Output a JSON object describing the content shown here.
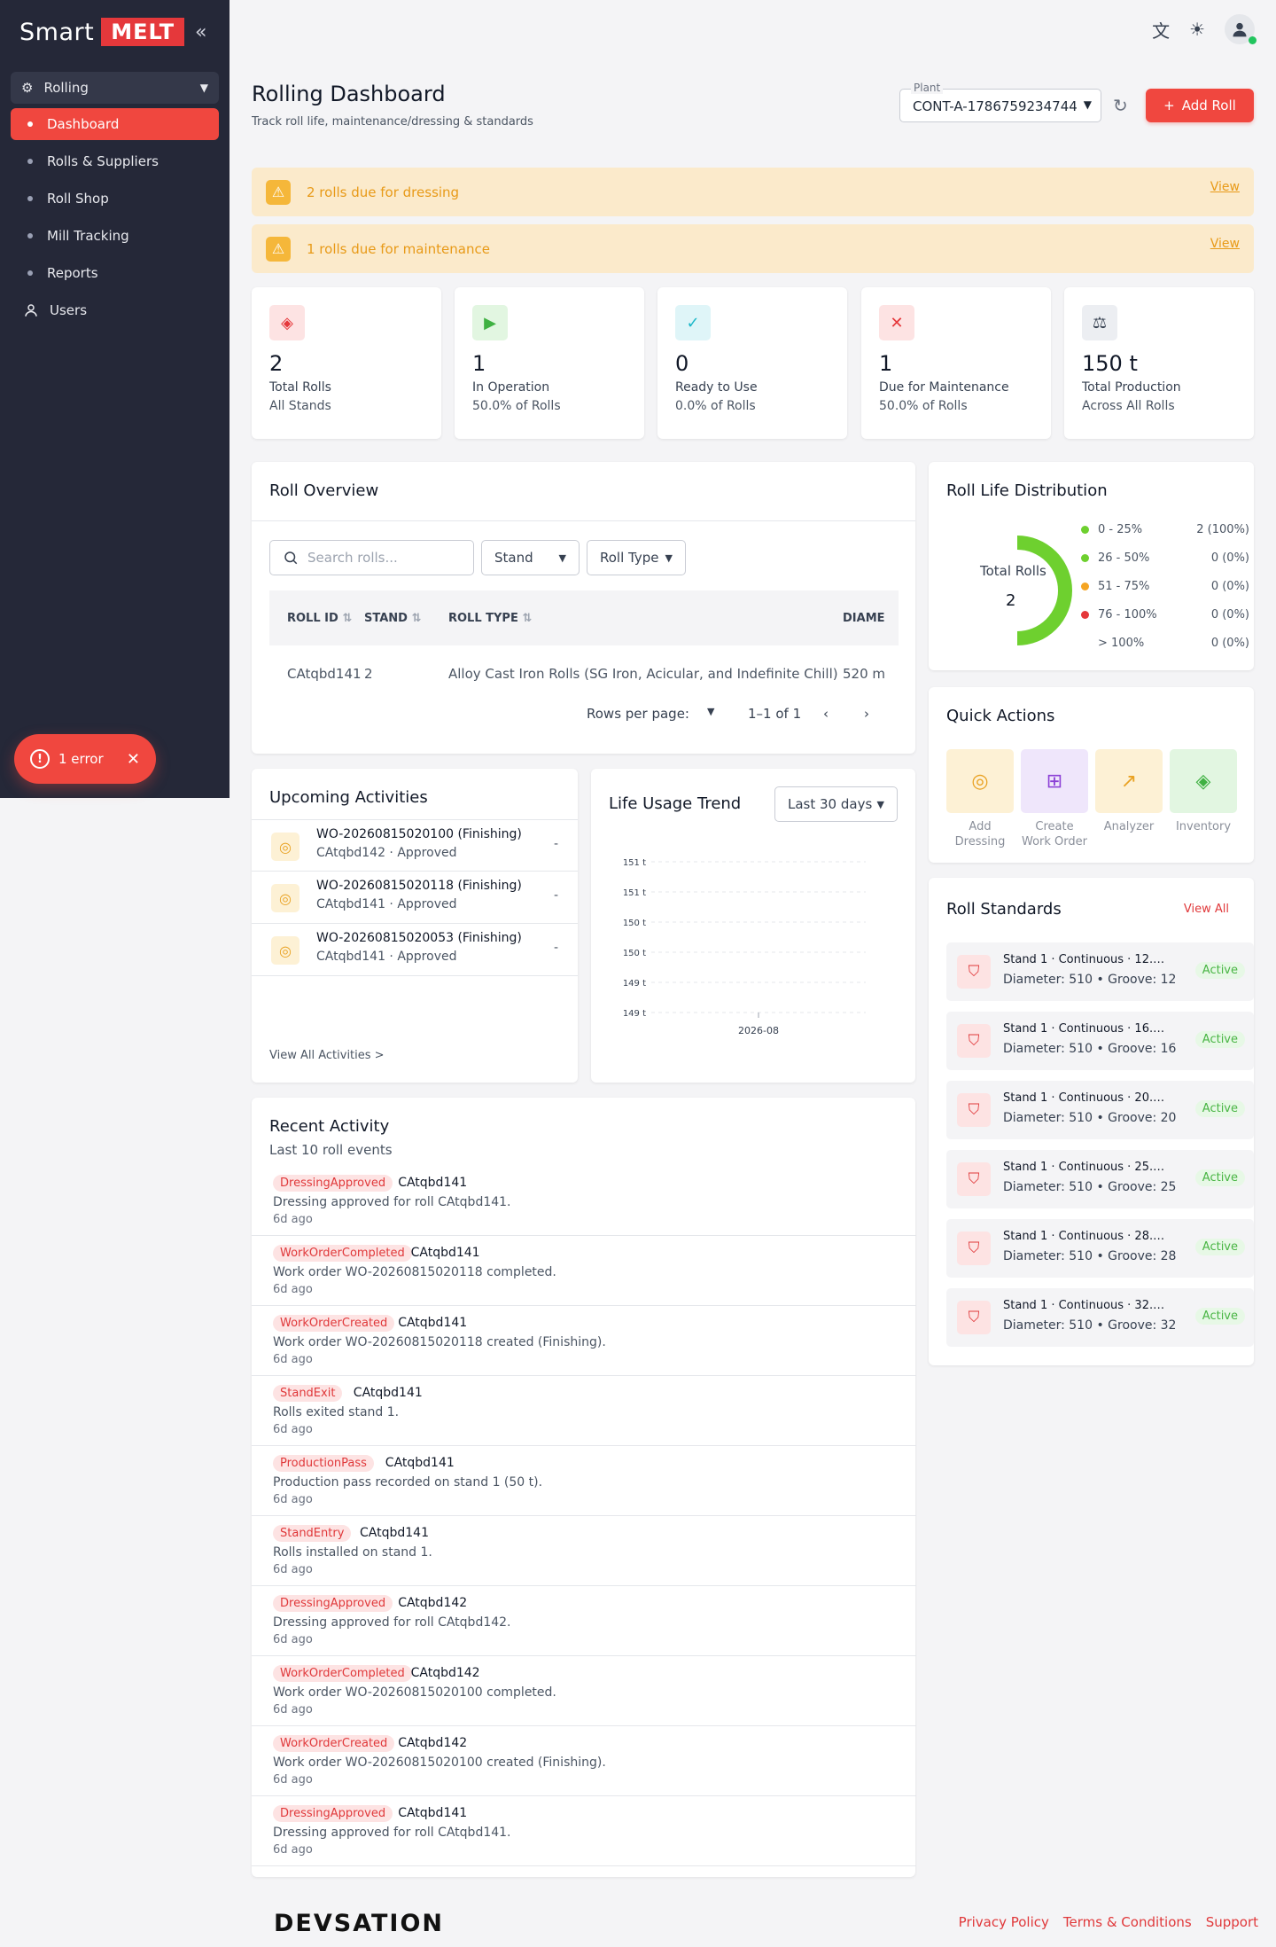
{
  "brand": {
    "prefix": "Smart",
    "highlight": "MELT"
  },
  "sidebar": {
    "group_label": "Rolling",
    "items": [
      {
        "label": "Dashboard",
        "active": true
      },
      {
        "label": "Rolls & Suppliers"
      },
      {
        "label": "Roll Shop"
      },
      {
        "label": "Mill Tracking"
      },
      {
        "label": "Reports"
      }
    ],
    "users_label": "Users"
  },
  "error_toast": {
    "label": "1 error"
  },
  "header": {
    "title": "Rolling Dashboard",
    "subtitle": "Track roll life, maintenance/dressing & standards",
    "plant_label": "Plant",
    "plant_value": "CONT-A-1786759234744",
    "add_roll_label": "Add Roll"
  },
  "alerts": [
    {
      "message": "2 rolls due for dressing",
      "action": "View"
    },
    {
      "message": "1 rolls due for maintenance",
      "action": "View"
    }
  ],
  "stats": [
    {
      "value": "2",
      "label": "Total Rolls",
      "sub": "All Stands",
      "icon": "layers-icon",
      "color": "#e5383b",
      "bg": "#fde3e3"
    },
    {
      "value": "1",
      "label": "In Operation",
      "sub": "50.0% of Rolls",
      "icon": "play-icon",
      "color": "#3fb142",
      "bg": "#e2f6e1"
    },
    {
      "value": "0",
      "label": "Ready to Use",
      "sub": "0.0% of Rolls",
      "icon": "check-circle-icon",
      "color": "#1eb8c9",
      "bg": "#dff5f8"
    },
    {
      "value": "1",
      "label": "Due for Maintenance",
      "sub": "50.0% of Rolls",
      "icon": "tools-icon",
      "color": "#e5383b",
      "bg": "#fde3e3"
    },
    {
      "value": "150 t",
      "label": "Total Production",
      "sub": "Across All Rolls",
      "icon": "scale-icon",
      "color": "#374151",
      "bg": "#eceef2"
    }
  ],
  "roll_overview": {
    "title": "Roll Overview",
    "search_placeholder": "Search rolls...",
    "stand_filter": "Stand",
    "type_filter": "Roll Type",
    "columns": [
      "ROLL ID",
      "STAND",
      "ROLL TYPE",
      "DIAME"
    ],
    "rows": [
      [
        "CAtqbd141",
        "2",
        "Alloy Cast Iron Rolls (SG Iron, Acicular, and Indefinite Chill)",
        "520 m"
      ]
    ],
    "rows_per_page_label": "Rows per page:",
    "range": "1–1 of 1"
  },
  "life_distribution": {
    "title": "Roll Life Distribution",
    "center_label": "Total Rolls",
    "center_value": "2",
    "buckets": [
      {
        "label": "0 - 25%",
        "value": "2 (100%)",
        "color": "#6ed02f",
        "fraction": 1.0
      },
      {
        "label": "26 - 50%",
        "value": "0 (0%)",
        "color": "#6ed02f",
        "fraction": 0
      },
      {
        "label": "51 - 75%",
        "value": "0 (0%)",
        "color": "#f5a524",
        "fraction": 0
      },
      {
        "label": "76 - 100%",
        "value": "0 (0%)",
        "color": "#e5383b",
        "fraction": 0
      },
      {
        "label": "> 100%",
        "value": "0 (0%)",
        "color": "",
        "fraction": 0
      }
    ]
  },
  "quick_actions": {
    "title": "Quick Actions",
    "items": [
      {
        "label": "Add Dressing",
        "icon": "ring-icon",
        "bg": "#fdf1d5",
        "color": "#e9a223"
      },
      {
        "label": "Create Work Order",
        "icon": "file-plus-icon",
        "bg": "#efe6fb",
        "color": "#8b3fd6"
      },
      {
        "label": "Analyzer",
        "icon": "chart-icon",
        "bg": "#fdf1d5",
        "color": "#e9a223"
      },
      {
        "label": "Inventory",
        "icon": "layers-icon",
        "bg": "#e2f6e1",
        "color": "#3fb142"
      }
    ]
  },
  "upcoming": {
    "title": "Upcoming Activities",
    "items": [
      {
        "title": "WO-20260815020100 (Finishing)",
        "sub": "CAtqbd142 · Approved",
        "value": "-"
      },
      {
        "title": "WO-20260815020118 (Finishing)",
        "sub": "CAtqbd141 · Approved",
        "value": "-"
      },
      {
        "title": "WO-20260815020053 (Finishing)",
        "sub": "CAtqbd141 · Approved",
        "value": "-"
      }
    ],
    "view_all": "View All Activities >"
  },
  "life_trend": {
    "title": "Life Usage Trend",
    "range": "Last 30 days"
  },
  "chart_data": {
    "type": "line",
    "title": "Life Usage Trend",
    "x": [
      "2026-08"
    ],
    "y_tick_labels": [
      "151 t",
      "151 t",
      "150 t",
      "150 t",
      "149 t",
      "149 t"
    ],
    "series": [],
    "grid": true
  },
  "roll_standards": {
    "title": "Roll Standards",
    "view_all": "View All",
    "items": [
      {
        "title": "Stand 1 · Continuous · 12.0...",
        "detail": "Diameter: 510 • Groove: 12",
        "status": "Active"
      },
      {
        "title": "Stand 1 · Continuous · 16.0...",
        "detail": "Diameter: 510 • Groove: 16",
        "status": "Active"
      },
      {
        "title": "Stand 1 · Continuous · 20.0...",
        "detail": "Diameter: 510 • Groove: 20",
        "status": "Active"
      },
      {
        "title": "Stand 1 · Continuous · 25.0...",
        "detail": "Diameter: 510 • Groove: 25",
        "status": "Active"
      },
      {
        "title": "Stand 1 · Continuous · 28.0...",
        "detail": "Diameter: 510 • Groove: 28",
        "status": "Active"
      },
      {
        "title": "Stand 1 · Continuous · 32.0...",
        "detail": "Diameter: 510 • Groove: 32",
        "status": "Active"
      }
    ]
  },
  "recent": {
    "title": "Recent Activity",
    "subtitle": "Last 10 roll events",
    "items": [
      {
        "type": "DressingApproved",
        "roll": "CAtqbd141",
        "desc": "Dressing approved for roll CAtqbd141.",
        "ago": "6d ago"
      },
      {
        "type": "WorkOrderCompleted",
        "roll": "CAtqbd141",
        "desc": "Work order WO-20260815020118 completed.",
        "ago": "6d ago"
      },
      {
        "type": "WorkOrderCreated",
        "roll": "CAtqbd141",
        "desc": "Work order WO-20260815020118 created (Finishing).",
        "ago": "6d ago"
      },
      {
        "type": "StandExit",
        "roll": "CAtqbd141",
        "desc": "Rolls exited stand 1.",
        "ago": "6d ago"
      },
      {
        "type": "ProductionPass",
        "roll": "CAtqbd141",
        "desc": "Production pass recorded on stand 1 (50 t).",
        "ago": "6d ago"
      },
      {
        "type": "StandEntry",
        "roll": "CAtqbd141",
        "desc": "Rolls installed on stand 1.",
        "ago": "6d ago"
      },
      {
        "type": "DressingApproved",
        "roll": "CAtqbd142",
        "desc": "Dressing approved for roll CAtqbd142.",
        "ago": "6d ago"
      },
      {
        "type": "WorkOrderCompleted",
        "roll": "CAtqbd142",
        "desc": "Work order WO-20260815020100 completed.",
        "ago": "6d ago"
      },
      {
        "type": "WorkOrderCreated",
        "roll": "CAtqbd142",
        "desc": "Work order WO-20260815020100 created (Finishing).",
        "ago": "6d ago"
      },
      {
        "type": "DressingApproved",
        "roll": "CAtqbd141",
        "desc": "Dressing approved for roll CAtqbd141.",
        "ago": "6d ago"
      }
    ]
  },
  "footer": {
    "logo": "DEVSATION",
    "links": [
      "Privacy Policy",
      "Terms & Conditions",
      "Support"
    ]
  }
}
